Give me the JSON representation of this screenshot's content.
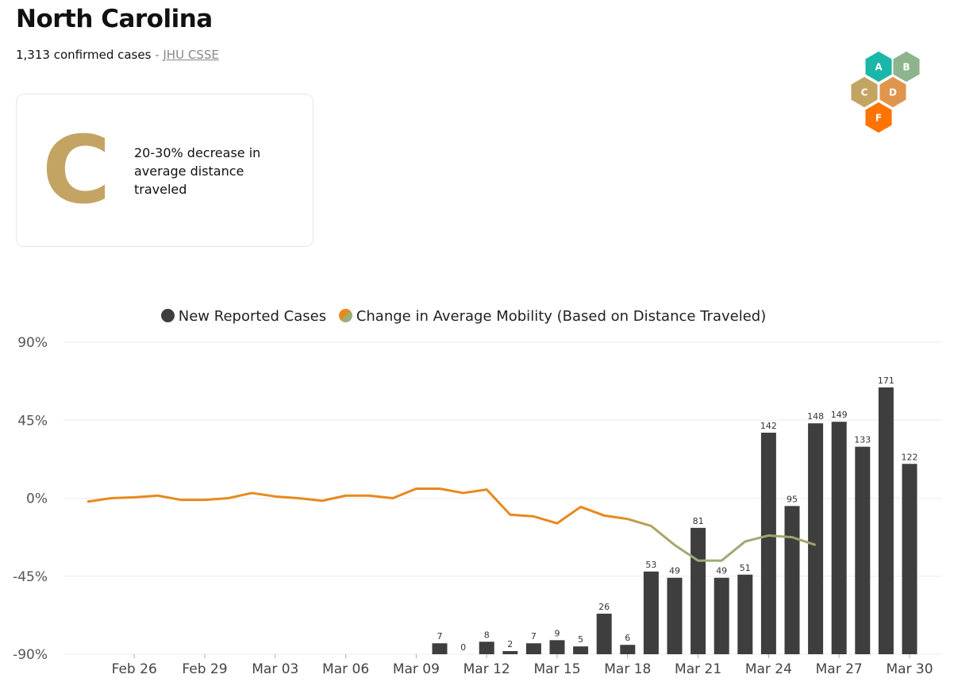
{
  "header": {
    "title": "North Carolina",
    "cases_text": "1,313 confirmed cases",
    "separator": " - ",
    "source_link": "JHU CSSE"
  },
  "grade_card": {
    "grade": "C",
    "grade_color": "#c3a463",
    "description": "20-30% decrease in average distance traveled"
  },
  "grade_scale": [
    {
      "letter": "A",
      "color": "#1ab6a8"
    },
    {
      "letter": "B",
      "color": "#8db48d"
    },
    {
      "letter": "C",
      "color": "#c3a463"
    },
    {
      "letter": "D",
      "color": "#e0954c"
    },
    {
      "letter": "F",
      "color": "#ff7300"
    }
  ],
  "chart_data": {
    "type": "bar+line",
    "legend": [
      {
        "name": "New Reported Cases",
        "color": "#3e3e3e"
      },
      {
        "name": "Change in Average Mobility (Based on Distance Traveled)",
        "colors": [
          "#e8891e",
          "#9aae7b"
        ]
      }
    ],
    "y_ticks": [
      "90%",
      "45%",
      "0%",
      "-45%",
      "-90%"
    ],
    "ylim_percent": [
      -90,
      90
    ],
    "x_ticks": [
      "Feb 26",
      "Feb 29",
      "Mar 03",
      "Mar 06",
      "Mar 09",
      "Mar 12",
      "Mar 15",
      "Mar 18",
      "Mar 21",
      "Mar 24",
      "Mar 27",
      "Mar 30"
    ],
    "dates": [
      "Feb 24",
      "Feb 25",
      "Feb 26",
      "Feb 27",
      "Feb 28",
      "Feb 29",
      "Mar 01",
      "Mar 02",
      "Mar 03",
      "Mar 04",
      "Mar 05",
      "Mar 06",
      "Mar 07",
      "Mar 08",
      "Mar 09",
      "Mar 10",
      "Mar 11",
      "Mar 12",
      "Mar 13",
      "Mar 14",
      "Mar 15",
      "Mar 16",
      "Mar 17",
      "Mar 18",
      "Mar 19",
      "Mar 20",
      "Mar 21",
      "Mar 22",
      "Mar 23",
      "Mar 24",
      "Mar 25",
      "Mar 26",
      "Mar 27",
      "Mar 28",
      "Mar 29",
      "Mar 30"
    ],
    "new_cases": [
      {
        "date": "Mar 10",
        "value": 7
      },
      {
        "date": "Mar 11",
        "value": 0
      },
      {
        "date": "Mar 12",
        "value": 8
      },
      {
        "date": "Mar 13",
        "value": 2
      },
      {
        "date": "Mar 14",
        "value": 7
      },
      {
        "date": "Mar 15",
        "value": 9
      },
      {
        "date": "Mar 16",
        "value": 5
      },
      {
        "date": "Mar 17",
        "value": 26
      },
      {
        "date": "Mar 18",
        "value": 6
      },
      {
        "date": "Mar 19",
        "value": 53
      },
      {
        "date": "Mar 20",
        "value": 49
      },
      {
        "date": "Mar 21",
        "value": 81
      },
      {
        "date": "Mar 22",
        "value": 49
      },
      {
        "date": "Mar 23",
        "value": 51
      },
      {
        "date": "Mar 24",
        "value": 142
      },
      {
        "date": "Mar 25",
        "value": 95
      },
      {
        "date": "Mar 26",
        "value": 148
      },
      {
        "date": "Mar 27",
        "value": 149
      },
      {
        "date": "Mar 28",
        "value": 133
      },
      {
        "date": "Mar 29",
        "value": 171
      },
      {
        "date": "Mar 30",
        "value": 122
      }
    ],
    "cases_axis_max": 200,
    "mobility_percent": [
      {
        "date": "Feb 24",
        "value": -2
      },
      {
        "date": "Feb 25",
        "value": 0
      },
      {
        "date": "Feb 26",
        "value": 0.5
      },
      {
        "date": "Feb 27",
        "value": 1.5
      },
      {
        "date": "Feb 28",
        "value": -1
      },
      {
        "date": "Feb 29",
        "value": -1
      },
      {
        "date": "Mar 01",
        "value": 0
      },
      {
        "date": "Mar 02",
        "value": 3
      },
      {
        "date": "Mar 03",
        "value": 1
      },
      {
        "date": "Mar 04",
        "value": 0
      },
      {
        "date": "Mar 05",
        "value": -1.5
      },
      {
        "date": "Mar 06",
        "value": 1.5
      },
      {
        "date": "Mar 07",
        "value": 1.5
      },
      {
        "date": "Mar 08",
        "value": 0
      },
      {
        "date": "Mar 09",
        "value": 5.5
      },
      {
        "date": "Mar 10",
        "value": 5.5
      },
      {
        "date": "Mar 11",
        "value": 3
      },
      {
        "date": "Mar 12",
        "value": 5
      },
      {
        "date": "Mar 13",
        "value": -9.5
      },
      {
        "date": "Mar 14",
        "value": -10.5
      },
      {
        "date": "Mar 15",
        "value": -14.5
      },
      {
        "date": "Mar 16",
        "value": -5
      },
      {
        "date": "Mar 17",
        "value": -10
      },
      {
        "date": "Mar 18",
        "value": -12
      },
      {
        "date": "Mar 19",
        "value": -16
      },
      {
        "date": "Mar 20",
        "value": -27
      },
      {
        "date": "Mar 21",
        "value": -36
      },
      {
        "date": "Mar 22",
        "value": -36
      },
      {
        "date": "Mar 23",
        "value": -25
      },
      {
        "date": "Mar 24",
        "value": -21.5
      },
      {
        "date": "Mar 25",
        "value": -22.5
      },
      {
        "date": "Mar 26",
        "value": -27
      }
    ],
    "grid": true
  }
}
